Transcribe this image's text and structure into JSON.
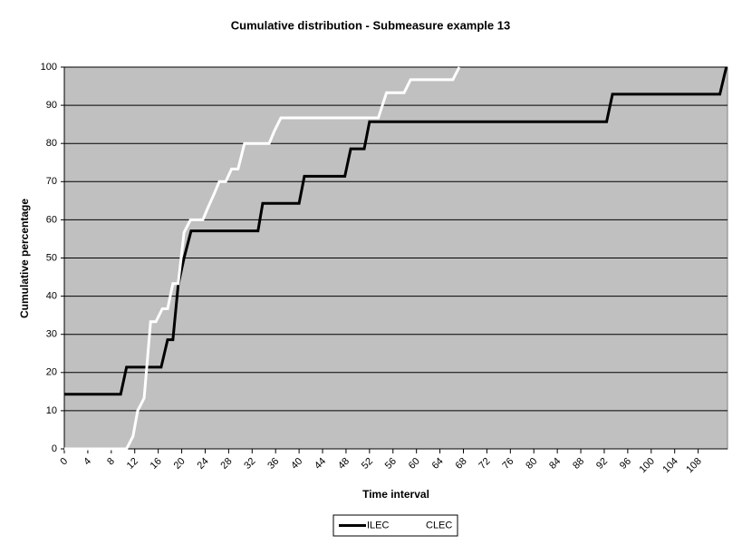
{
  "chart_data": {
    "type": "line",
    "title": "Cumulative distribution - Submeasure example 13",
    "x_label": "Time interval",
    "y_label": "Cumulative percentage",
    "xlim": [
      0,
      113
    ],
    "ylim": [
      0,
      100
    ],
    "xticks": [
      0,
      4,
      8,
      12,
      16,
      20,
      24,
      28,
      32,
      36,
      40,
      44,
      48,
      52,
      56,
      60,
      64,
      68,
      72,
      76,
      80,
      84,
      88,
      92,
      96,
      100,
      104,
      108
    ],
    "yticks": [
      0,
      10,
      20,
      30,
      40,
      50,
      60,
      70,
      80,
      90,
      100
    ],
    "grid": true,
    "background": "#c0c0c0",
    "legend": "bottom",
    "series": [
      {
        "name": "ILEC",
        "color": "#000000",
        "x": [
          0,
          9.6,
          10.6,
          16.5,
          17.6,
          18.5,
          19.4,
          20.4,
          21.6,
          33.0,
          33.8,
          40.0,
          40.9,
          47.8,
          48.8,
          51.1,
          52.0,
          92.4,
          93.4,
          111.7,
          112.8
        ],
        "values": [
          14.3,
          14.3,
          21.4,
          21.4,
          28.6,
          28.6,
          42.9,
          50,
          57.1,
          57.1,
          64.3,
          64.3,
          71.4,
          71.4,
          78.6,
          78.6,
          85.7,
          85.7,
          92.9,
          92.9,
          100
        ]
      },
      {
        "name": "CLEC",
        "color": "#ffffff",
        "x": [
          0,
          10.6,
          11.7,
          12.5,
          13.6,
          14.7,
          15.6,
          16.7,
          17.6,
          18.5,
          19.4,
          20.4,
          21.5,
          23.6,
          24.5,
          25.5,
          26.4,
          27.5,
          28.5,
          29.6,
          30.7,
          34.9,
          35.8,
          36.9,
          53.5,
          54.9,
          57.9,
          59.0,
          66.2,
          67.3
        ],
        "values": [
          0,
          0,
          3.3,
          10,
          13.3,
          33.3,
          33.3,
          36.7,
          36.7,
          43.3,
          43.3,
          56.7,
          60,
          60,
          63.3,
          66.7,
          70,
          70,
          73.3,
          73.3,
          80,
          80,
          83.3,
          86.7,
          86.7,
          93.3,
          93.3,
          96.7,
          96.7,
          100
        ]
      }
    ]
  }
}
